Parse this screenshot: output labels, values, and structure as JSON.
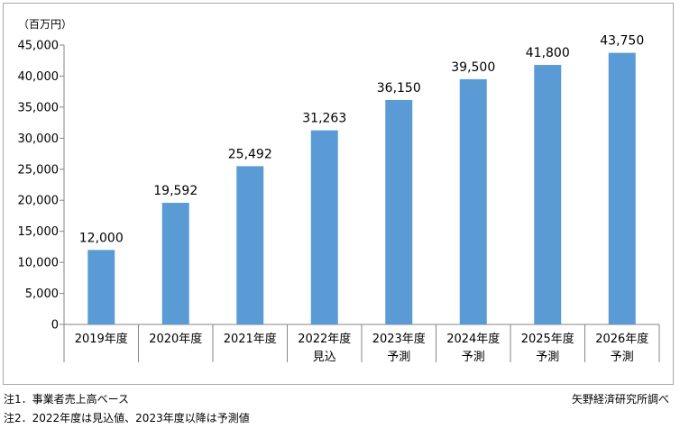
{
  "notes": {
    "note1": "注1．事業者売上高ベース",
    "note2": "注2．2022年度は見込値、2023年度以降は予測値",
    "source": "矢野経済研究所調べ"
  },
  "chart_data": {
    "type": "bar",
    "title": "",
    "xlabel": "",
    "ylabel": "",
    "unit_label": "（百万円）",
    "categories": [
      [
        "2019年度"
      ],
      [
        "2020年度"
      ],
      [
        "2021年度"
      ],
      [
        "2022年度",
        "見込"
      ],
      [
        "2023年度",
        "予測"
      ],
      [
        "2024年度",
        "予測"
      ],
      [
        "2025年度",
        "予測"
      ],
      [
        "2026年度",
        "予測"
      ]
    ],
    "values": [
      12000,
      19592,
      25492,
      31263,
      36150,
      39500,
      41800,
      43750
    ],
    "data_labels": [
      "12,000",
      "19,592",
      "25,492",
      "31,263",
      "36,150",
      "39,500",
      "41,800",
      "43,750"
    ],
    "ylim": [
      0,
      45000
    ],
    "yticks": [
      0,
      5000,
      10000,
      15000,
      20000,
      25000,
      30000,
      35000,
      40000,
      45000
    ],
    "ytick_labels": [
      "0",
      "5,000",
      "10,000",
      "15,000",
      "20,000",
      "25,000",
      "30,000",
      "35,000",
      "40,000",
      "45,000"
    ],
    "bar_color": "#5b9bd5",
    "grid": false,
    "legend": "none"
  }
}
